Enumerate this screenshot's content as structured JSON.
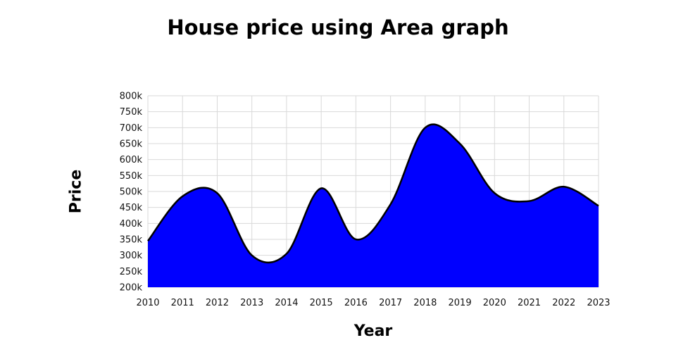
{
  "chart_data": {
    "type": "area",
    "title": "House price using Area graph",
    "xlabel": "Year",
    "ylabel": "Price",
    "x": [
      2010,
      2011,
      2012,
      2013,
      2014,
      2015,
      2016,
      2017,
      2018,
      2019,
      2020,
      2021,
      2022,
      2023
    ],
    "x_tick_labels": [
      "2010",
      "2011",
      "2012",
      "2013",
      "2014",
      "2015",
      "2016",
      "2017",
      "2018",
      "2019",
      "2020",
      "2021",
      "2022",
      "2023"
    ],
    "y_tick_values": [
      200000,
      250000,
      300000,
      350000,
      400000,
      450000,
      500000,
      550000,
      600000,
      650000,
      700000,
      750000,
      800000
    ],
    "y_tick_labels": [
      "200k",
      "250k",
      "300k",
      "350k",
      "400k",
      "450k",
      "500k",
      "550k",
      "600k",
      "650k",
      "700k",
      "750k",
      "800k"
    ],
    "ylim": [
      200000,
      800000
    ],
    "xlim": [
      2010,
      2023
    ],
    "grid": true,
    "series": [
      {
        "values": [
          345000,
          485000,
          495000,
          300000,
          305000,
          510000,
          350000,
          460000,
          700000,
          650000,
          495000,
          470000,
          515000,
          455000
        ]
      }
    ],
    "colors": {
      "fill": "#0000ff",
      "line": "#000000",
      "grid": "#d9d9d9"
    }
  }
}
